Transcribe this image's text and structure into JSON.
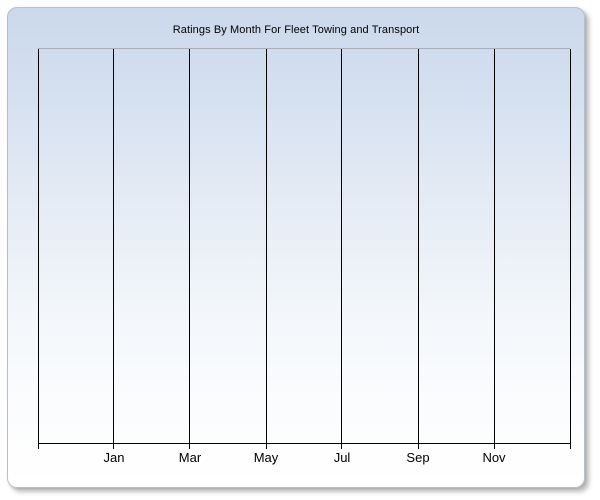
{
  "panel": {
    "background_top_color": "#cbd9ec",
    "background_bottom_color": "#ffffff",
    "border_color": "#b6bfcc"
  },
  "chart_data": {
    "type": "line",
    "title": "Ratings By Month For Fleet Towing and Transport",
    "xlabel": "",
    "ylabel": "",
    "x_axis": {
      "tick_labels": [
        "Jan",
        "Mar",
        "May",
        "Jul",
        "Sep",
        "Nov"
      ],
      "label_positions": [
        1,
        2,
        3,
        4,
        5,
        6
      ],
      "gridline_positions": [
        0,
        1,
        2,
        3,
        4,
        5,
        6,
        7
      ],
      "axis_units": 7
    },
    "y_axis": {
      "tick_labels": []
    },
    "series": [],
    "grid": {
      "vertical": true,
      "horizontal": false
    },
    "legend": "none",
    "colors": {
      "gridline": "#000000",
      "axis": "#000000",
      "plot_top_border": "#a8afbb",
      "text": "#000000"
    }
  }
}
